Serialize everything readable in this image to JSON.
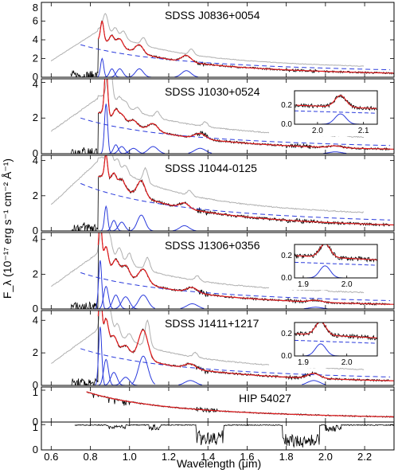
{
  "chart_data": {
    "type": "line",
    "xlabel": "Wavelength (μm)",
    "ylabel": "F_λ (10⁻¹⁷ erg s⁻¹ cm⁻² Å⁻¹)",
    "xlim": [
      0.55,
      2.35
    ],
    "xticks": [
      "0.6",
      "0.8",
      "1.0",
      "1.2",
      "1.4",
      "1.6",
      "1.8",
      "2.0",
      "2.2"
    ],
    "colors": {
      "observed": "#000000",
      "model": "#e31a1c",
      "template": "#b0b0b0",
      "lines": "#2b3bdc",
      "continuum_dashed": "#2b3bdc"
    },
    "panels": [
      {
        "name": "SDSS J0836+0054",
        "ylim": [
          0,
          8
        ],
        "yticks": [
          "0",
          "2",
          "4",
          "6",
          "8"
        ],
        "continuum_peak": 4.0,
        "lines_um": [
          0.86,
          0.91,
          0.95,
          1.05,
          1.29
        ],
        "line_heights": [
          2.0,
          0.9,
          0.9,
          0.9,
          0.7
        ]
      },
      {
        "name": "SDSS J1030+0524",
        "ylim": [
          0,
          4.2
        ],
        "yticks": [
          "0",
          "2",
          "4"
        ],
        "continuum_peak": 2.3,
        "lines_um": [
          0.88,
          0.93,
          0.96,
          1.02,
          1.12,
          1.36,
          2.05
        ],
        "line_heights": [
          2.8,
          0.5,
          0.4,
          0.3,
          0.4,
          0.3,
          0.1
        ],
        "inset": {
          "xlim": [
            1.95,
            2.13
          ],
          "ylim": [
            0,
            0.35
          ],
          "xticks": [
            "2.0",
            "2.1"
          ],
          "yticks": [
            "0.0",
            "0.2"
          ]
        }
      },
      {
        "name": "SDSS J1044-0125",
        "ylim": [
          0,
          4.3
        ],
        "yticks": [
          "0",
          "2",
          "4"
        ],
        "continuum_peak": 3.1,
        "lines_um": [
          0.88,
          0.92,
          0.96,
          1.06,
          1.28
        ],
        "line_heights": [
          1.4,
          0.6,
          0.5,
          0.9,
          0.3
        ]
      },
      {
        "name": "SDSS J1306+0356",
        "ylim": [
          0,
          4.4
        ],
        "yticks": [
          "0",
          "2",
          "4"
        ],
        "continuum_peak": 2.4,
        "lines_um": [
          0.85,
          0.88,
          0.93,
          0.98,
          1.07,
          1.32,
          1.95
        ],
        "line_heights": [
          2.8,
          1.3,
          0.8,
          0.7,
          0.8,
          0.3,
          0.1
        ],
        "inset": {
          "xlim": [
            1.88,
            2.07
          ],
          "ylim": [
            0,
            0.3
          ],
          "xticks": [
            "1.9",
            "2.0"
          ],
          "yticks": [
            "0.0",
            "0.2"
          ]
        }
      },
      {
        "name": "SDSS J1411+1217",
        "ylim": [
          0,
          4.6
        ],
        "yticks": [
          "0",
          "2",
          "4"
        ],
        "continuum_peak": 2.6,
        "lines_um": [
          0.85,
          0.88,
          0.92,
          0.98,
          1.07,
          1.31,
          1.94
        ],
        "line_heights": [
          3.6,
          1.6,
          0.8,
          0.5,
          1.8,
          0.3,
          0.3
        ],
        "inset": {
          "xlim": [
            1.88,
            2.07
          ],
          "ylim": [
            0,
            0.3
          ],
          "xticks": [
            "1.9",
            "2.0"
          ],
          "yticks": [
            "0.0",
            "0.2"
          ]
        }
      },
      {
        "name": "HIP 54027",
        "ylim": [
          0,
          1.1
        ],
        "yticks": [
          "0",
          "1"
        ]
      },
      {
        "name": "",
        "ylim": [
          0,
          1.1
        ],
        "yticks": [
          "0",
          "1"
        ]
      }
    ]
  }
}
